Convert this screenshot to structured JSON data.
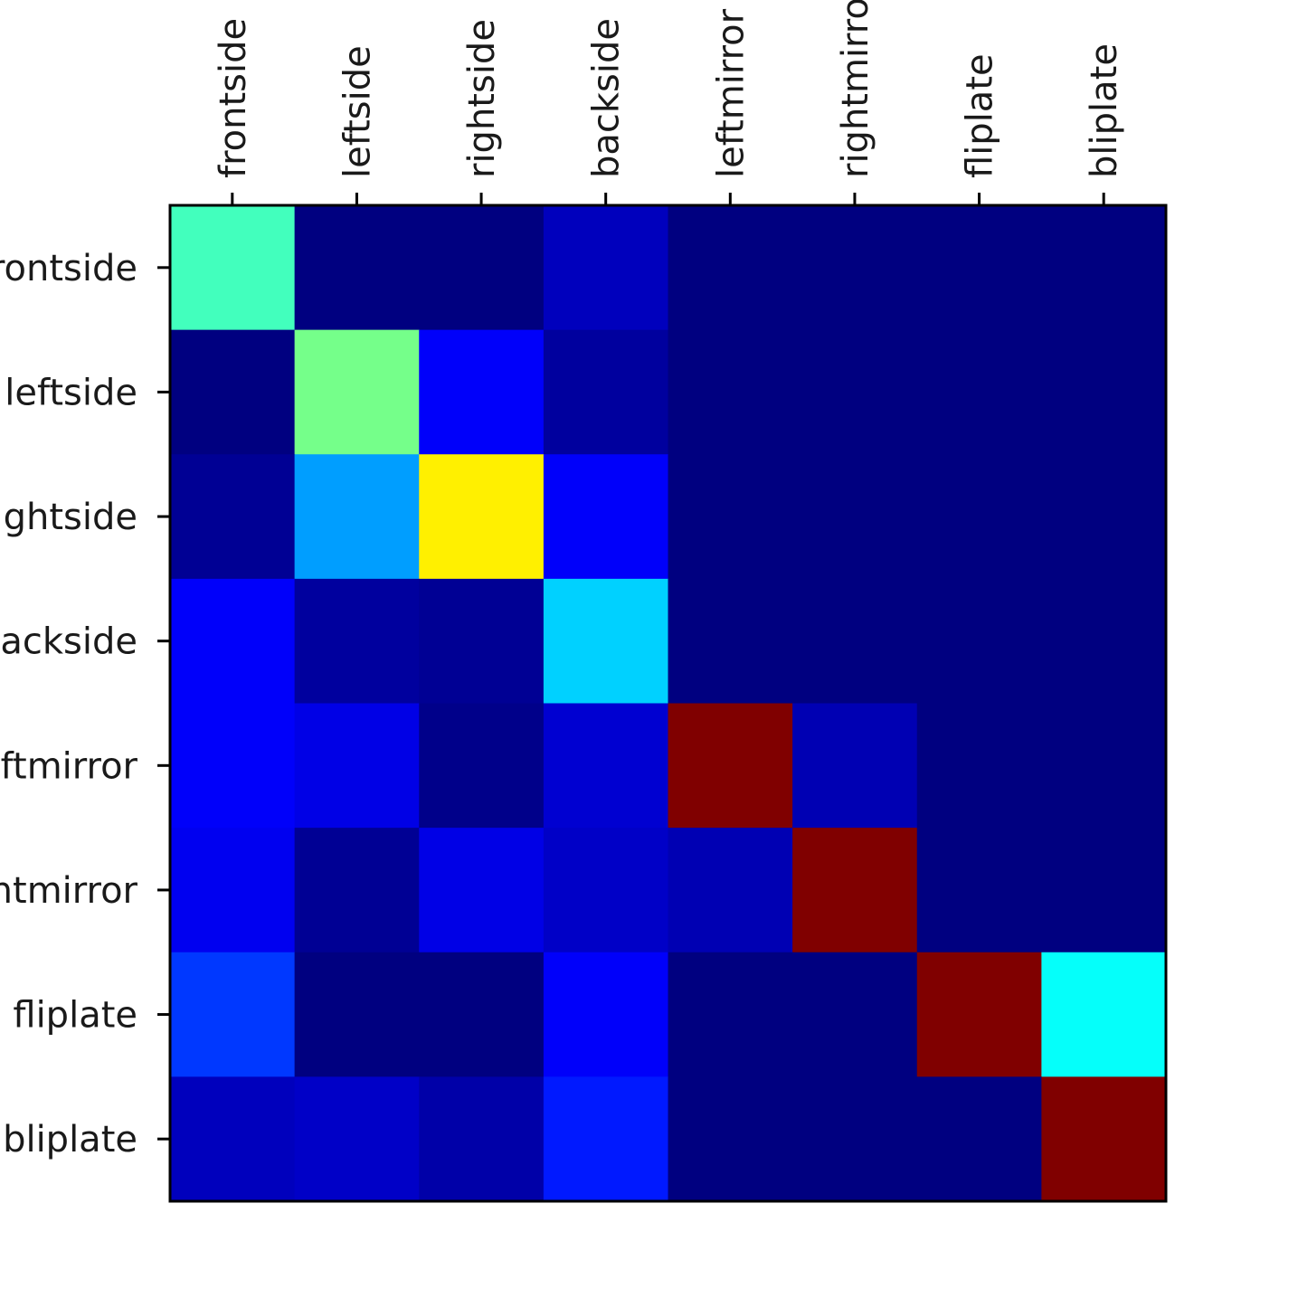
{
  "chart_data": {
    "type": "heatmap",
    "title": "",
    "xlabel": "",
    "ylabel": "",
    "colormap": "jet",
    "value_range": [
      0,
      1
    ],
    "x_tick_position": "top",
    "x_tick_rotation": "vertical",
    "grid": false,
    "legend": "none",
    "columns": [
      "frontside",
      "leftside",
      "rightside",
      "backside",
      "leftmirror",
      "rightmirror",
      "fliplate",
      "bliplate"
    ],
    "rows": [
      "frontside",
      "leftside",
      "rightside",
      "backside",
      "leftmirror",
      "rightmirror",
      "fliplate",
      "bliplate"
    ],
    "values": [
      [
        0.44,
        0.0,
        0.0,
        0.06,
        0.0,
        0.0,
        0.0,
        0.0
      ],
      [
        0.0,
        0.49,
        0.12,
        0.03,
        0.0,
        0.0,
        0.0,
        0.0
      ],
      [
        0.02,
        0.28,
        0.64,
        0.12,
        0.0,
        0.0,
        0.0,
        0.0
      ],
      [
        0.12,
        0.03,
        0.02,
        0.33,
        0.0,
        0.0,
        0.0,
        0.0
      ],
      [
        0.12,
        0.1,
        0.01,
        0.08,
        1.0,
        0.05,
        0.0,
        0.0
      ],
      [
        0.11,
        0.02,
        0.1,
        0.07,
        0.05,
        1.0,
        0.0,
        0.0
      ],
      [
        0.18,
        0.0,
        0.0,
        0.12,
        0.0,
        0.0,
        1.0,
        0.38
      ],
      [
        0.06,
        0.07,
        0.04,
        0.15,
        0.0,
        0.0,
        0.0,
        1.0
      ]
    ]
  }
}
